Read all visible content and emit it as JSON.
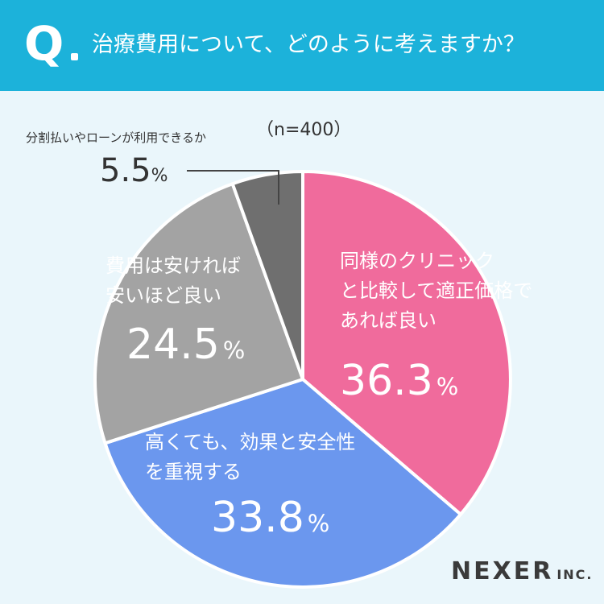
{
  "header": {
    "q_mark": "Q",
    "question": "治療費用について、どのように考えますか？",
    "bg_color": "#1cb2da"
  },
  "sample_size": "（n=400）",
  "brand": {
    "name": "NEXER",
    "suffix": "INC."
  },
  "chart_data": {
    "type": "pie",
    "title": "治療費用について、どのように考えますか？",
    "slices": [
      {
        "lines": [
          "同様のクリニック",
          "と比較して適正価格で",
          "あれば良い"
        ],
        "value": 36.3,
        "color": "#f06b9c"
      },
      {
        "lines": [
          "高くても、効果と安全性",
          "を重視する"
        ],
        "value": 33.8,
        "color": "#6b97ee"
      },
      {
        "lines": [
          "費用は安ければ",
          "安いほど良い"
        ],
        "value": 24.5,
        "color": "#a3a3a3"
      },
      {
        "lines": [
          "分割払いやローンが利用できるか"
        ],
        "value": 5.5,
        "color": "#6f6f6f"
      }
    ],
    "unit": "%"
  }
}
